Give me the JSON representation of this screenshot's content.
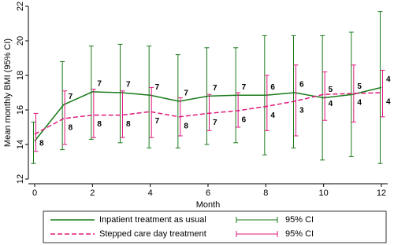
{
  "chart_data": {
    "type": "line",
    "y_label": "Mean monthly BMI (95% CI)",
    "x_label": "Month",
    "x": [
      0,
      1,
      2,
      3,
      4,
      5,
      6,
      7,
      8,
      9,
      10,
      11,
      12
    ],
    "xlim": [
      0,
      12
    ],
    "xticks": [
      0,
      2,
      4,
      6,
      8,
      10,
      12
    ],
    "ylim": [
      12,
      22
    ],
    "yticks": [
      12,
      14,
      16,
      18,
      20,
      22
    ],
    "series": [
      {
        "name": "Inpatient treatment as usual",
        "ci_name": "95% CI",
        "color": "#1a7a1a",
        "dashed": false,
        "values": [
          14.2,
          16.3,
          17.05,
          17.0,
          16.85,
          16.5,
          16.8,
          16.85,
          16.85,
          17.0,
          16.7,
          16.9,
          17.3
        ],
        "ci_low": [
          12.9,
          13.7,
          14.3,
          14.1,
          13.8,
          13.8,
          14.0,
          14.1,
          13.4,
          13.8,
          13.1,
          13.3,
          12.9
        ],
        "ci_high": [
          15.3,
          18.8,
          19.7,
          19.8,
          19.7,
          19.2,
          19.6,
          19.6,
          20.3,
          20.3,
          20.3,
          20.5,
          21.7
        ],
        "n_labels": [
          null,
          7,
          7,
          7,
          7,
          7,
          7,
          7,
          6,
          6,
          5,
          5,
          4
        ]
      },
      {
        "name": "Stepped care day treatment",
        "ci_name": "95% CI",
        "color": "#e0197d",
        "dashed": true,
        "values": [
          14.6,
          15.5,
          15.7,
          15.7,
          15.9,
          15.6,
          15.8,
          15.95,
          16.2,
          16.5,
          16.9,
          16.95,
          17.0
        ],
        "ci_low": [
          13.6,
          14.0,
          14.4,
          14.4,
          14.4,
          14.5,
          14.8,
          15.0,
          14.8,
          14.5,
          15.4,
          15.3,
          15.6
        ],
        "ci_high": [
          15.8,
          17.1,
          17.2,
          17.1,
          17.3,
          16.7,
          16.9,
          17.0,
          18.0,
          18.6,
          18.2,
          18.6,
          18.3
        ],
        "n_labels": [
          8,
          8,
          8,
          8,
          7,
          8,
          7,
          6,
          4,
          3,
          4,
          4,
          4
        ]
      }
    ]
  }
}
